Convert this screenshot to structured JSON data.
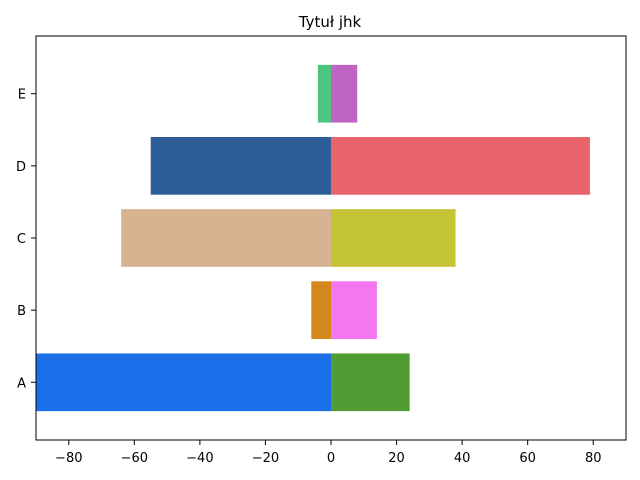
{
  "chart_data": {
    "type": "bar",
    "orientation": "horizontal",
    "title": "Tytuł jhk",
    "xlabel": "",
    "ylabel": "",
    "categories": [
      "A",
      "B",
      "C",
      "D",
      "E"
    ],
    "xlim": [
      -90,
      90
    ],
    "xticks": [
      -80,
      -60,
      -40,
      -20,
      0,
      20,
      40,
      60,
      80
    ],
    "xtick_labels": [
      "−80",
      "−60",
      "−40",
      "−20",
      "0",
      "20",
      "40",
      "60",
      "80"
    ],
    "grid": false,
    "legend": "none",
    "bars": {
      "negative": {
        "values": [
          -92,
          -6,
          -64,
          -55,
          -4
        ],
        "colors": [
          "#1a6fe8",
          "#d4871c",
          "#d6b391",
          "#2f5d98",
          "#4dc47f"
        ]
      },
      "positive": {
        "values": [
          24,
          14,
          38,
          79,
          8
        ],
        "colors": [
          "#529c34",
          "#f476f0",
          "#c3c536",
          "#e9636a",
          "#bf64c3"
        ]
      }
    }
  }
}
